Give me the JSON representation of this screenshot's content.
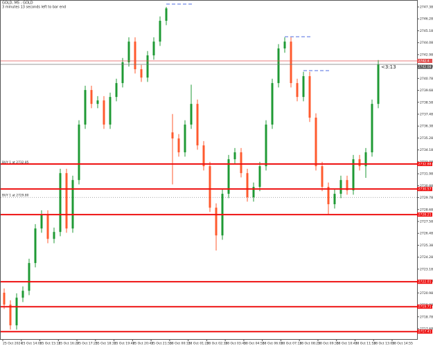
{
  "chart_data": {
    "type": "candlestick",
    "symbol_title": "GOLD, M5 - GOLD",
    "timer_text": "3 minutes 13 seconds left to bar end",
    "countdown": "<3:13",
    "ylim": [
      2716.72,
      2748.02
    ],
    "yticks": [
      2747.38,
      2746.28,
      2745.18,
      2744.08,
      2742.98,
      2741.88,
      2740.78,
      2739.68,
      2738.58,
      2737.48,
      2736.38,
      2735.28,
      2734.18,
      2733.08,
      2731.98,
      2730.88,
      2729.78,
      2728.68,
      2727.58,
      2726.48,
      2725.38,
      2724.28,
      2723.18,
      2722.08,
      2720.98,
      2719.88,
      2718.78,
      2717.68
    ],
    "x_labels": [
      "25 Oct 2024",
      "25 Oct 14:05",
      "25 Oct 15:15",
      "25 Oct 16:20",
      "25 Oct 17:25",
      "25 Oct 18:35",
      "25 Oct 19:40",
      "25 Oct 20:45",
      "25 Oct 21:55",
      "28 Oct 00:15",
      "28 Oct 01:25",
      "28 Oct 02:35",
      "28 Oct 03:45",
      "28 Oct 04:55",
      "28 Oct 06:05",
      "28 Oct 07:15",
      "28 Oct 08:25",
      "28 Oct 09:35",
      "28 Oct 10:45",
      "28 Oct 11:55",
      "28 Oct 13:05",
      "28 Oct 14:55"
    ],
    "up_color": "#1f9a34",
    "down_color": "#ff5a2e",
    "ohlc": [
      [
        2721.0,
        2721.4,
        2719.5,
        2719.9
      ],
      [
        2719.9,
        2720.3,
        2717.59,
        2717.99
      ],
      [
        2717.99,
        2720.94,
        2717.59,
        2720.54
      ],
      [
        2720.54,
        2721.58,
        2720.14,
        2721.18
      ],
      [
        2721.18,
        2724.14,
        2720.78,
        2723.74
      ],
      [
        2723.74,
        2727.33,
        2723.34,
        2726.93
      ],
      [
        2726.93,
        2728.61,
        2726.53,
        2728.21
      ],
      [
        2728.21,
        2728.61,
        2725.57,
        2725.97
      ],
      [
        2725.97,
        2727.01,
        2725.57,
        2726.61
      ],
      [
        2726.61,
        2732.44,
        2726.21,
        2732.04
      ],
      [
        2732.04,
        2732.44,
        2726.53,
        2726.93
      ],
      [
        2726.93,
        2731.8,
        2726.53,
        2731.4
      ],
      [
        2731.4,
        2736.92,
        2731.0,
        2736.52
      ],
      [
        2736.52,
        2740.11,
        2736.12,
        2739.71
      ],
      [
        2739.71,
        2740.11,
        2738.03,
        2738.43
      ],
      [
        2738.43,
        2739.15,
        2738.03,
        2738.75
      ],
      [
        2738.75,
        2739.15,
        2736.12,
        2736.52
      ],
      [
        2736.52,
        2739.47,
        2736.12,
        2739.07
      ],
      [
        2739.07,
        2740.75,
        2738.67,
        2740.35
      ],
      [
        2740.35,
        2742.67,
        2739.95,
        2742.27
      ],
      [
        2742.27,
        2744.58,
        2741.87,
        2744.18
      ],
      [
        2744.18,
        2744.58,
        2741.23,
        2741.63
      ],
      [
        2741.63,
        2742.03,
        2740.46,
        2740.86
      ],
      [
        2740.86,
        2743.31,
        2740.46,
        2742.91
      ],
      [
        2742.91,
        2744.58,
        2742.51,
        2744.18
      ],
      [
        2744.18,
        2746.5,
        2743.78,
        2746.1
      ],
      [
        2746.1,
        2747.38,
        2745.7,
        2747.25
      ],
      [
        2735.8,
        2737.5,
        2731.0,
        2735.24
      ],
      [
        2735.24,
        2735.64,
        2733.56,
        2733.96
      ],
      [
        2733.96,
        2736.92,
        2733.56,
        2736.52
      ],
      [
        2736.52,
        2740.2,
        2736.12,
        2738.43
      ],
      [
        2738.43,
        2738.83,
        2734.2,
        2734.6
      ],
      [
        2734.6,
        2735.0,
        2732.28,
        2732.68
      ],
      [
        2732.68,
        2733.08,
        2728.45,
        2728.85
      ],
      [
        2728.85,
        2729.25,
        2724.9,
        2726.29
      ],
      [
        2726.29,
        2730.53,
        2725.89,
        2730.13
      ],
      [
        2730.13,
        2733.72,
        2729.73,
        2733.32
      ],
      [
        2733.32,
        2734.36,
        2732.92,
        2733.96
      ],
      [
        2733.96,
        2734.36,
        2731.64,
        2732.04
      ],
      [
        2732.04,
        2732.44,
        2729.41,
        2729.81
      ],
      [
        2729.81,
        2731.17,
        2729.41,
        2730.77
      ],
      [
        2730.77,
        2733.08,
        2730.37,
        2732.68
      ],
      [
        2732.68,
        2736.92,
        2732.28,
        2736.52
      ],
      [
        2736.52,
        2740.75,
        2736.12,
        2740.35
      ],
      [
        2740.35,
        2743.95,
        2739.95,
        2743.55
      ],
      [
        2743.55,
        2744.58,
        2743.15,
        2744.18
      ],
      [
        2744.18,
        2744.58,
        2739.95,
        2740.35
      ],
      [
        2740.35,
        2740.75,
        2738.67,
        2739.07
      ],
      [
        2739.07,
        2741.39,
        2738.67,
        2740.99
      ],
      [
        2740.99,
        2741.39,
        2736.76,
        2737.16
      ],
      [
        2737.16,
        2737.56,
        2732.28,
        2732.68
      ],
      [
        2732.68,
        2733.08,
        2730.37,
        2730.77
      ],
      [
        2730.77,
        2731.17,
        2728.2,
        2729.17
      ],
      [
        2729.17,
        2730.53,
        2728.77,
        2730.13
      ],
      [
        2730.13,
        2731.8,
        2729.73,
        2731.4
      ],
      [
        2731.4,
        2731.8,
        2730.05,
        2730.45
      ],
      [
        2730.45,
        2733.72,
        2730.05,
        2733.32
      ],
      [
        2733.32,
        2733.72,
        2732.28,
        2732.68
      ],
      [
        2732.68,
        2734.36,
        2731.6,
        2733.96
      ],
      [
        2733.96,
        2738.83,
        2733.56,
        2738.43
      ],
      [
        2738.43,
        2742.48,
        2738.03,
        2742.08
      ]
    ],
    "levels": [
      2732.88,
      2730.57,
      2728.21,
      2722.01,
      2719.71,
      2717.41
    ],
    "level_color": "#ee1111",
    "last_price": 2742.4,
    "bid_price": 2742.08,
    "high_markers": [
      2747.64,
      2744.63,
      2741.5
    ],
    "orders": [
      {
        "label": "BUY 1 at 2732.85",
        "price": 2732.85
      },
      {
        "label": "BUY 1 at 2729.80",
        "price": 2729.8
      }
    ]
  }
}
